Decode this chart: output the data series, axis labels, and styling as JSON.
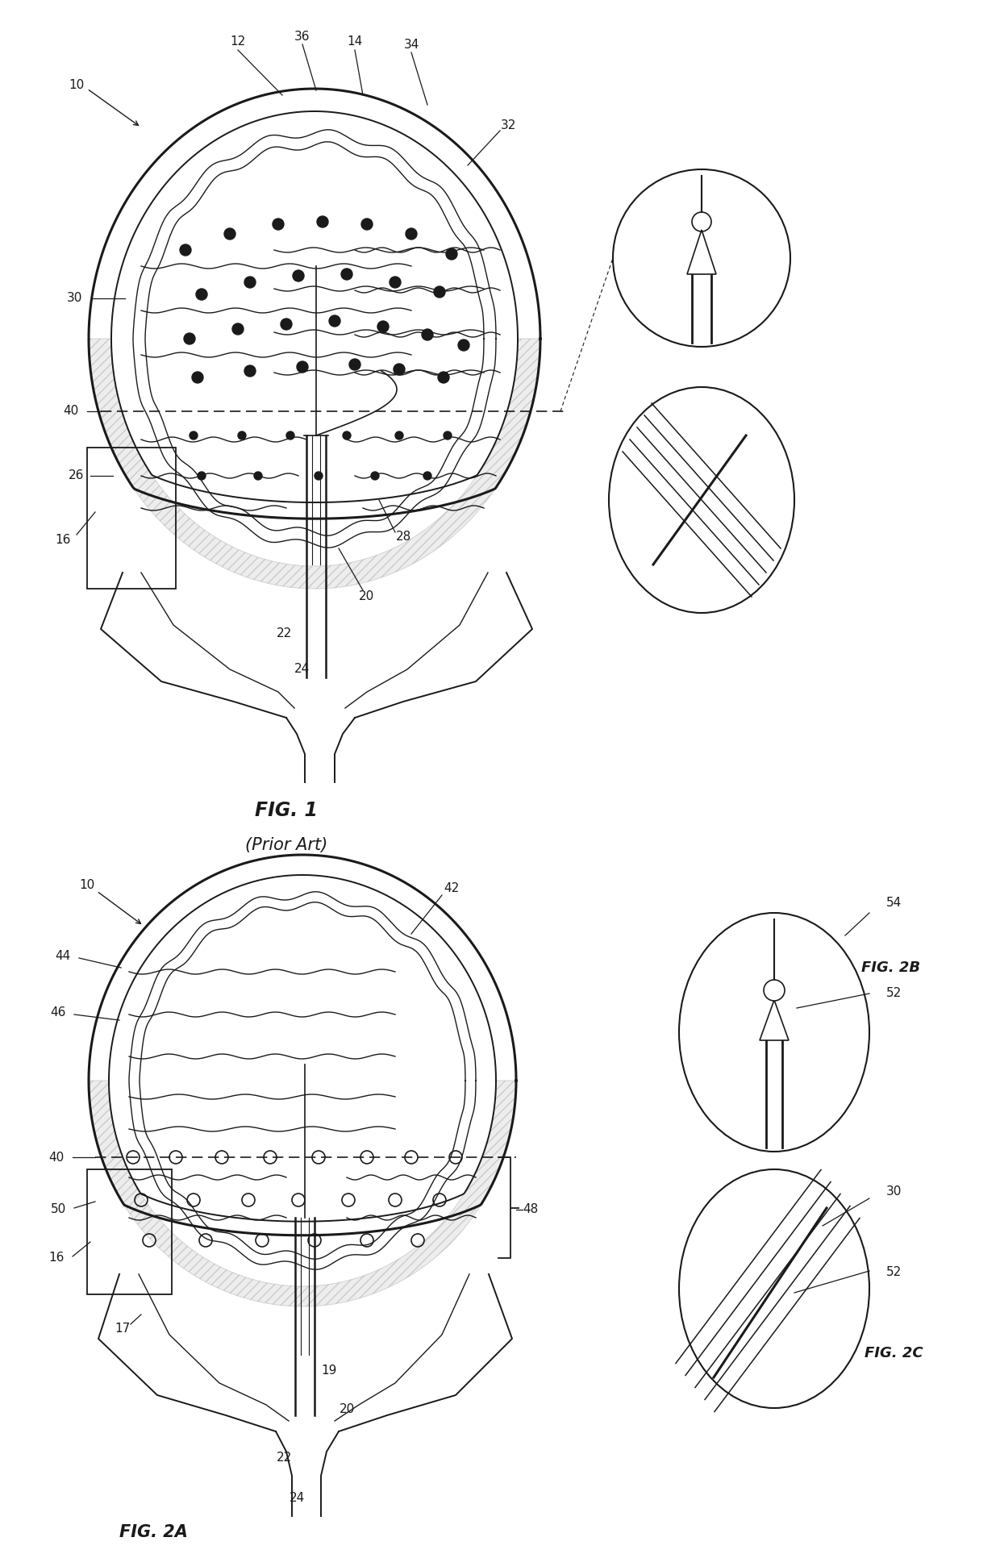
{
  "fig_width": 12.4,
  "fig_height": 19.27,
  "bg_color": "#ffffff",
  "line_color": "#1a1a1a",
  "fig1_title": "FIG. 1",
  "fig1_subtitle": "(Prior Art)",
  "fig2a_title": "FIG. 2A",
  "fig2b_title": "FIG. 2B",
  "fig2c_title": "FIG. 2C",
  "lw_outer": 2.2,
  "lw_inner": 1.4,
  "lw_thin": 1.0,
  "dot_r": 0.007,
  "open_dot_r": 0.008,
  "font_size_label": 11,
  "font_size_title": 14
}
